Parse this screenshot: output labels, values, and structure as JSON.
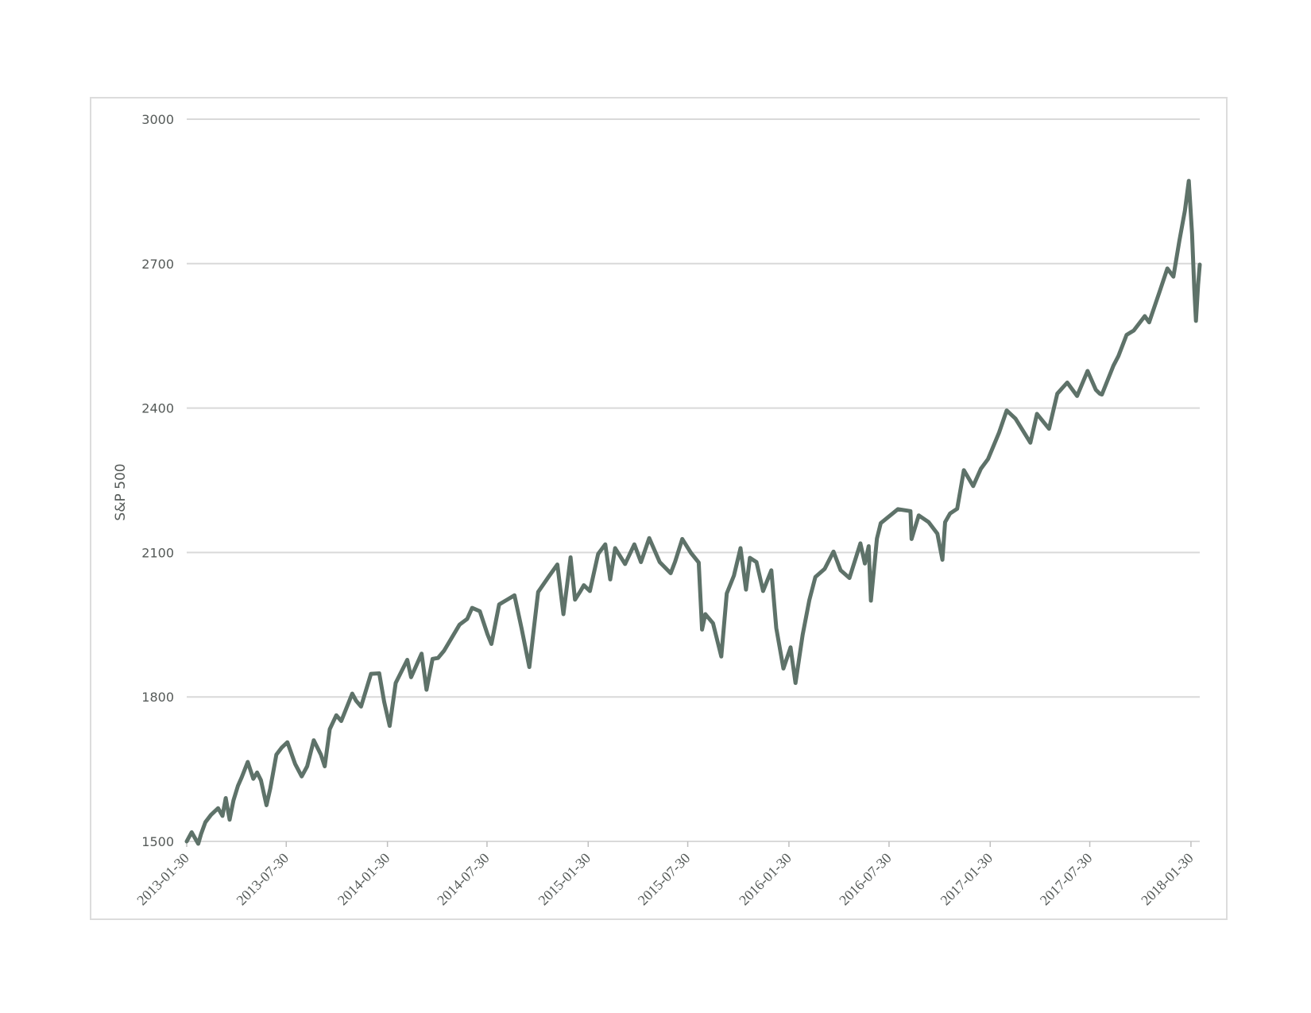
{
  "chart_data": {
    "type": "line",
    "title": "",
    "xlabel": "",
    "ylabel": "S&P 500",
    "ylim": [
      1500,
      3000
    ],
    "xlim": [
      "2013-01-30",
      "2018-02-15"
    ],
    "yticks": [
      1500,
      1800,
      2100,
      2400,
      2700,
      3000
    ],
    "xticks": [
      "2013-01-30",
      "2013-07-30",
      "2014-01-30",
      "2014-07-30",
      "2015-01-30",
      "2015-07-30",
      "2016-01-30",
      "2016-07-30",
      "2017-01-30",
      "2017-07-30",
      "2018-01-30"
    ],
    "grid": true,
    "legend": "none",
    "line_color": "#5e7269",
    "series": [
      {
        "x": [
          "2013-01-30",
          "2013-02-08",
          "2013-02-20",
          "2013-02-25",
          "2013-03-05",
          "2013-03-15",
          "2013-03-28",
          "2013-04-05",
          "2013-04-11",
          "2013-04-18",
          "2013-04-25",
          "2013-05-03",
          "2013-05-10",
          "2013-05-21",
          "2013-05-31",
          "2013-06-07",
          "2013-06-14",
          "2013-06-24",
          "2013-07-01",
          "2013-07-12",
          "2013-07-22",
          "2013-08-01",
          "2013-08-15",
          "2013-08-27",
          "2013-09-06",
          "2013-09-18",
          "2013-10-01",
          "2013-10-08",
          "2013-10-17",
          "2013-10-29",
          "2013-11-07",
          "2013-11-27",
          "2013-12-04",
          "2013-12-13",
          "2013-12-31",
          "2014-01-15",
          "2014-01-24",
          "2014-02-03",
          "2014-02-14",
          "2014-03-07",
          "2014-03-14",
          "2014-04-02",
          "2014-04-11",
          "2014-04-22",
          "2014-05-02",
          "2014-05-13",
          "2014-06-10",
          "2014-06-24",
          "2014-07-03",
          "2014-07-17",
          "2014-07-31",
          "2014-08-07",
          "2014-08-21",
          "2014-09-18",
          "2014-10-01",
          "2014-10-15",
          "2014-10-31",
          "2014-11-20",
          "2014-12-05",
          "2014-12-16",
          "2014-12-29",
          "2015-01-06",
          "2015-01-16",
          "2015-01-22",
          "2015-02-02",
          "2015-02-17",
          "2015-03-02",
          "2015-03-11",
          "2015-03-20",
          "2015-04-07",
          "2015-04-24",
          "2015-05-06",
          "2015-05-21",
          "2015-06-09",
          "2015-06-29",
          "2015-07-07",
          "2015-07-20",
          "2015-08-05",
          "2015-08-19",
          "2015-08-25",
          "2015-08-31",
          "2015-09-14",
          "2015-09-29",
          "2015-10-09",
          "2015-10-22",
          "2015-11-03",
          "2015-11-13",
          "2015-11-20",
          "2015-12-02",
          "2015-12-14",
          "2015-12-29",
          "2016-01-07",
          "2016-01-20",
          "2016-02-02",
          "2016-02-11",
          "2016-02-24",
          "2016-03-07",
          "2016-03-18",
          "2016-04-04",
          "2016-04-20",
          "2016-05-03",
          "2016-05-19",
          "2016-06-08",
          "2016-06-16",
          "2016-06-23",
          "2016-06-27",
          "2016-07-08",
          "2016-07-15",
          "2016-08-15",
          "2016-09-07",
          "2016-09-09",
          "2016-09-22",
          "2016-10-10",
          "2016-10-26",
          "2016-11-04",
          "2016-11-09",
          "2016-11-18",
          "2016-12-01",
          "2016-12-13",
          "2016-12-30",
          "2017-01-13",
          "2017-01-26",
          "2017-02-15",
          "2017-03-01",
          "2017-03-17",
          "2017-04-13",
          "2017-04-25",
          "2017-05-17",
          "2017-06-01",
          "2017-06-19",
          "2017-07-07",
          "2017-07-26",
          "2017-08-10",
          "2017-08-17",
          "2017-08-21",
          "2017-09-11",
          "2017-09-20",
          "2017-10-05",
          "2017-10-18",
          "2017-11-07",
          "2017-11-15",
          "2017-12-04",
          "2017-12-18",
          "2017-12-29",
          "2018-01-09",
          "2018-01-19",
          "2018-01-26",
          "2018-02-01",
          "2018-02-05",
          "2018-02-08",
          "2018-02-12",
          "2018-02-15"
        ],
        "values": [
          1500,
          1519,
          1495,
          1515,
          1540,
          1555,
          1569,
          1553,
          1590,
          1545,
          1585,
          1615,
          1633,
          1665,
          1630,
          1643,
          1627,
          1575,
          1610,
          1680,
          1695,
          1706,
          1661,
          1635,
          1656,
          1710,
          1680,
          1656,
          1733,
          1762,
          1750,
          1807,
          1792,
          1780,
          1848,
          1849,
          1790,
          1740,
          1829,
          1877,
          1841,
          1890,
          1815,
          1879,
          1881,
          1896,
          1950,
          1962,
          1985,
          1978,
          1930,
          1910,
          1992,
          2011,
          1942,
          1862,
          2018,
          2051,
          2075,
          1972,
          2090,
          2002,
          2020,
          2032,
          2020,
          2097,
          2117,
          2044,
          2109,
          2076,
          2117,
          2080,
          2130,
          2080,
          2057,
          2081,
          2128,
          2099,
          2079,
          1940,
          1972,
          1953,
          1884,
          2015,
          2052,
          2109,
          2023,
          2089,
          2080,
          2020,
          2063,
          1943,
          1859,
          1903,
          1829,
          1929,
          2001,
          2049,
          2066,
          2102,
          2063,
          2047,
          2119,
          2077,
          2113,
          2000,
          2129,
          2161,
          2190,
          2186,
          2128,
          2177,
          2163,
          2139,
          2085,
          2163,
          2181,
          2191,
          2271,
          2238,
          2274,
          2294,
          2349,
          2395,
          2378,
          2328,
          2388,
          2357,
          2430,
          2453,
          2425,
          2477,
          2438,
          2430,
          2428,
          2488,
          2508,
          2552,
          2561,
          2591,
          2578,
          2642,
          2690,
          2673,
          2748,
          2810,
          2872,
          2762,
          2648,
          2581,
          2656,
          2698
        ]
      }
    ]
  }
}
